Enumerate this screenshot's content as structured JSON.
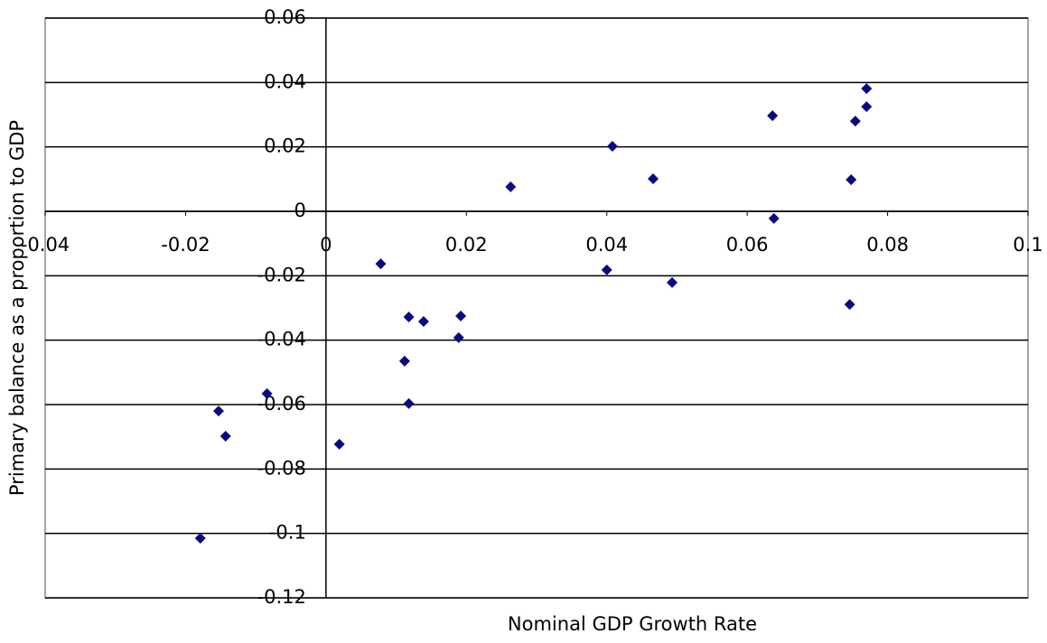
{
  "chart_data": {
    "type": "scatter",
    "x_label": "Nominal GDP Growth Rate",
    "y_label": "Primary balance as a proportion to GDP",
    "series": [
      {
        "color": "#0a0a80",
        "x": [
          0.077,
          0.077,
          0.0636,
          0.0754,
          0.0408,
          0.0466,
          0.0748,
          0.0263,
          0.0638,
          0.0078,
          0.04,
          0.0493,
          0.0746,
          0.0118,
          0.0192,
          0.0139,
          0.0189,
          0.0112,
          0.0118,
          -0.0084,
          -0.0153,
          -0.0143,
          0.0019,
          -0.0179
        ],
        "values": [
          0.0381,
          0.0325,
          0.0297,
          0.028,
          0.0202,
          0.0101,
          0.0098,
          0.0076,
          -0.0022,
          -0.0163,
          -0.0182,
          -0.0221,
          -0.0289,
          -0.0328,
          -0.0325,
          -0.0342,
          -0.0392,
          -0.0465,
          -0.0597,
          -0.0566,
          -0.062,
          -0.0698,
          -0.0723,
          -0.1015
        ]
      }
    ],
    "xlim": [
      -0.04,
      0.1
    ],
    "xticks": [
      -0.04,
      -0.02,
      0,
      0.02,
      0.04,
      0.06,
      0.08,
      0.1
    ],
    "ylim": [
      -0.12,
      0.06
    ],
    "yticks": [
      0.06,
      0.04,
      0.02,
      0,
      -0.02,
      -0.04,
      -0.06,
      -0.08,
      -0.1,
      -0.12
    ],
    "grid": true
  }
}
